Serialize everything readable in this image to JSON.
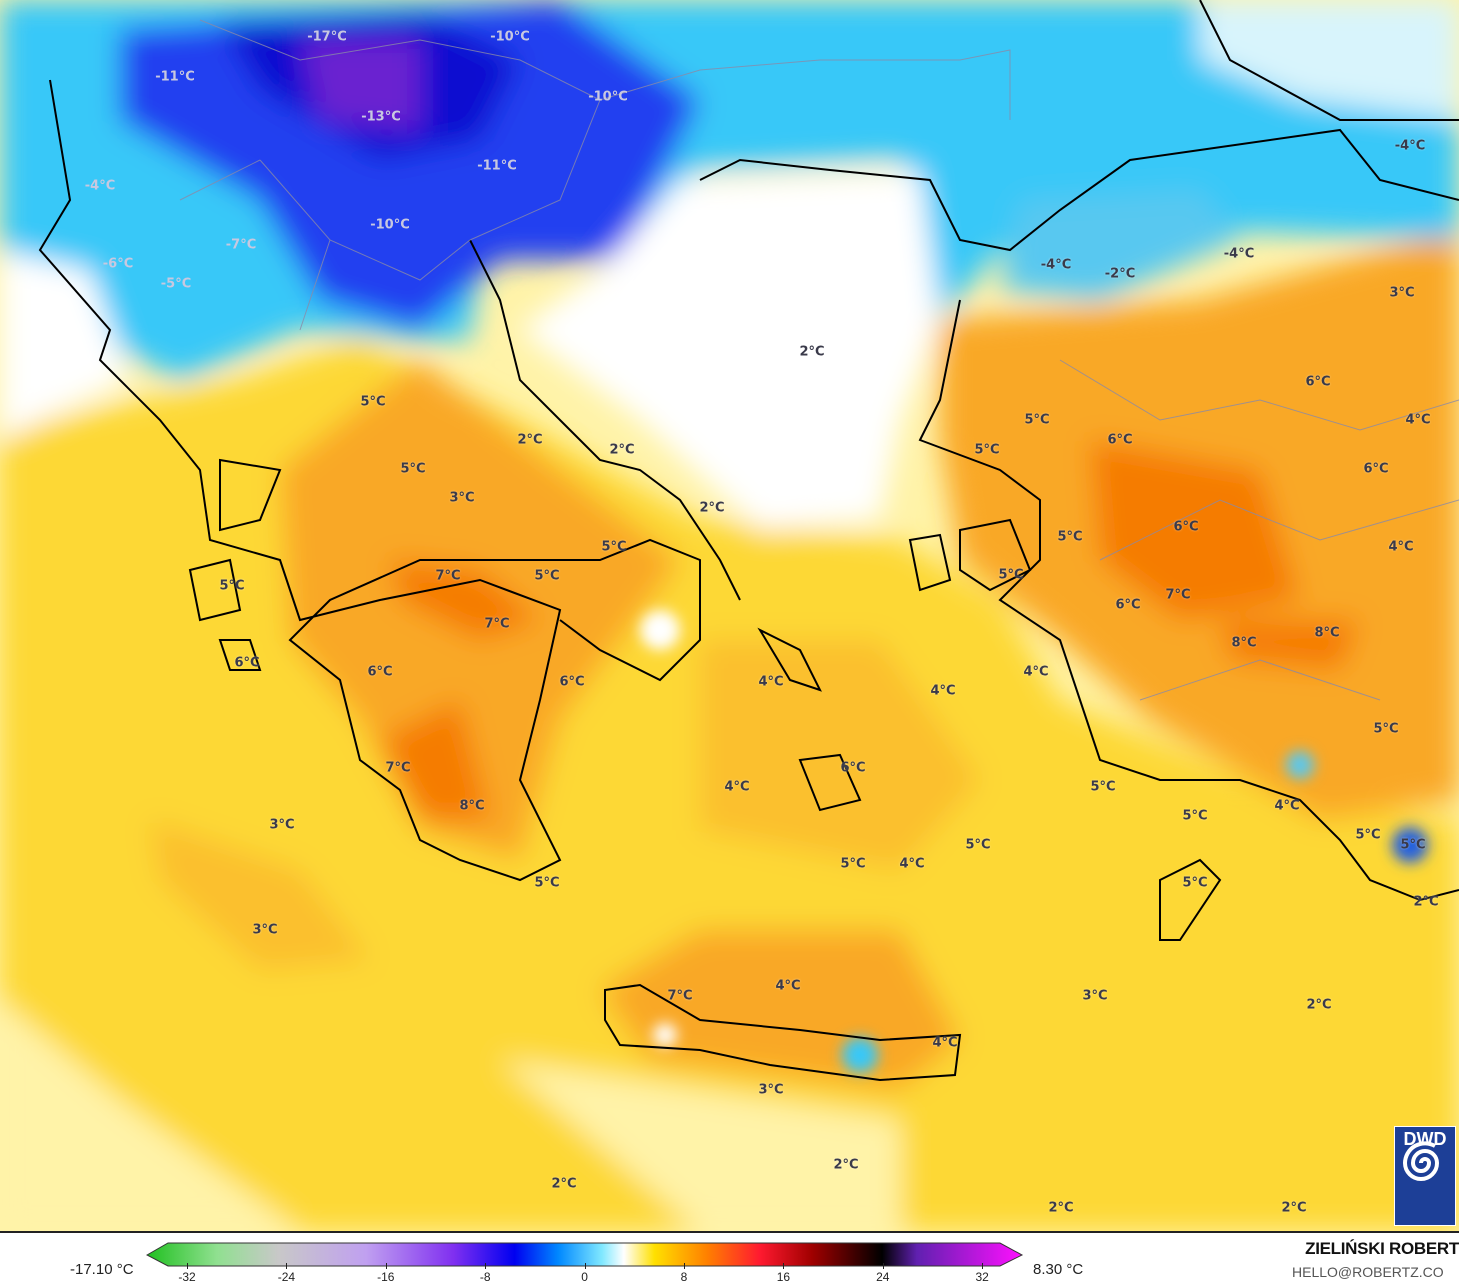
{
  "map": {
    "type": "temperature-forecast-map",
    "region": "Greece / Aegean",
    "colors": {
      "sea_warm": "#fde047",
      "sea_pale": "#fff3a8",
      "land_orange": "#f9a825",
      "deep_orange": "#f57c00",
      "cold_blue": "#1010e0",
      "cyan": "#38c8f8",
      "pale_cyan": "#d8f4fc"
    },
    "labels": [
      "-17°C",
      "-10°C",
      "-11°C",
      "-13°C",
      "-10°C",
      "-11°C",
      "-4°C",
      "-10°C",
      "-7°C",
      "-6°C",
      "-5°C",
      "-4°C",
      "-4°C",
      "-2°C",
      "-4°C",
      "3°C",
      "2°C",
      "6°C",
      "5°C",
      "4°C",
      "5°C",
      "2°C",
      "2°C",
      "6°C",
      "5°C",
      "6°C",
      "5°C",
      "3°C",
      "2°C",
      "6°C",
      "5°C",
      "4°C",
      "5°C",
      "7°C",
      "5°C",
      "5°C",
      "5°C",
      "7°C",
      "6°C",
      "7°C",
      "8°C",
      "8°C",
      "6°C",
      "6°C",
      "6°C",
      "4°C",
      "4°C",
      "4°C",
      "5°C",
      "7°C",
      "6°C",
      "4°C",
      "5°C",
      "8°C",
      "3°C",
      "4°C",
      "5°C",
      "5°C",
      "5°C",
      "5°C",
      "5°C",
      "4°C",
      "5°C",
      "5°C",
      "2°C",
      "3°C",
      "4°C",
      "7°C",
      "3°C",
      "2°C",
      "4°C",
      "3°C",
      "2°C",
      "2°C",
      "2°C",
      "2°C"
    ]
  },
  "logo": {
    "text": "DWD",
    "icon": "spiral-icon"
  },
  "legend": {
    "min_value": "-17.10 °C",
    "max_value": "8.30 °C",
    "ticks": [
      "-32",
      "-24",
      "-16",
      "-8",
      "0",
      "8",
      "16",
      "24",
      "32"
    ],
    "range": [
      -32,
      32
    ]
  },
  "credit": {
    "author": "ZIELIŃSKI ROBERT",
    "email": "HELLO@ROBERTZ.CO"
  }
}
